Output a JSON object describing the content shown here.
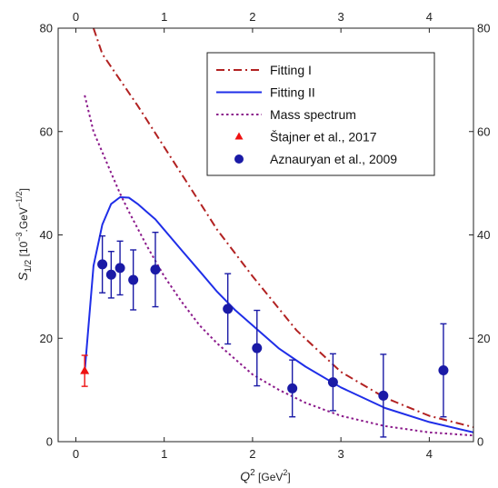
{
  "chart_data": {
    "type": "line",
    "xlabel": {
      "main": "Q",
      "sup": "2",
      "unit": " [GeV",
      "unit_sup": "2",
      "unit_end": "]"
    },
    "ylabel": {
      "main": "S",
      "sub": "1/2",
      "unit": " [10",
      "sup1": "−3",
      "mid": ".GeV",
      "sup2": "−1/2",
      "end": "]"
    },
    "xlim": [
      -0.2,
      4.5
    ],
    "ylim": [
      0,
      80
    ],
    "xticks": [
      0,
      1,
      2,
      3,
      4
    ],
    "yticks": [
      0,
      20,
      40,
      60,
      80
    ],
    "grid": false,
    "legend_position": "top-right",
    "series": [
      {
        "name": "Fitting I",
        "kind": "line",
        "style": "dashdot",
        "color": "#b22222",
        "x": [
          0.2,
          0.3,
          0.5,
          0.7,
          1.0,
          1.3,
          1.6,
          2.0,
          2.5,
          3.0,
          3.5,
          4.0,
          4.5
        ],
        "y": [
          80,
          75,
          70,
          65,
          57,
          49,
          41,
          32,
          21.5,
          13.5,
          8.5,
          5,
          2.8
        ]
      },
      {
        "name": "Fitting II",
        "kind": "line",
        "style": "solid",
        "color": "#1f2ee8",
        "x": [
          0.1,
          0.2,
          0.3,
          0.4,
          0.5,
          0.6,
          0.7,
          0.8,
          0.9,
          1.0,
          1.2,
          1.4,
          1.6,
          1.8,
          2.0,
          2.3,
          2.6,
          3.0,
          3.5,
          4.0,
          4.5
        ],
        "y": [
          13.5,
          34,
          42,
          46,
          47.3,
          47.2,
          46,
          44.5,
          43,
          41,
          37,
          33,
          29,
          25.5,
          22.5,
          18,
          14.5,
          10.5,
          6.5,
          3.8,
          1.8
        ]
      },
      {
        "name": "Mass spectrum",
        "kind": "line",
        "style": "dotted",
        "color": "#8b1a8b",
        "x": [
          0.1,
          0.2,
          0.3,
          0.4,
          0.5,
          0.6,
          0.8,
          1.0,
          1.2,
          1.4,
          1.6,
          1.8,
          2.0,
          2.3,
          2.6,
          3.0,
          3.5,
          4.0,
          4.5
        ],
        "y": [
          67,
          60,
          56,
          52,
          48,
          44.5,
          38,
          32,
          27,
          22.5,
          19,
          16,
          13,
          10,
          7.5,
          5,
          3,
          1.8,
          1.2
        ]
      },
      {
        "name": "Štajner et al., 2017",
        "kind": "points",
        "marker": "triangle",
        "color": "#ee1111",
        "x": [
          0.1
        ],
        "y": [
          13.7
        ],
        "err": [
          3
        ]
      },
      {
        "name": "Aznauryan et al., 2009",
        "kind": "points",
        "marker": "circle",
        "color": "#1a1aa6",
        "x": [
          0.3,
          0.4,
          0.5,
          0.65,
          0.9,
          1.72,
          2.05,
          2.45,
          2.91,
          3.48,
          4.16
        ],
        "y": [
          34.3,
          32.3,
          33.6,
          31.3,
          33.3,
          25.7,
          18.1,
          10.3,
          11.5,
          8.9,
          13.8
        ],
        "err": [
          5.5,
          4.5,
          5.2,
          5.8,
          7.2,
          6.8,
          7.3,
          5.5,
          5.5,
          8.0,
          9.0
        ]
      }
    ]
  }
}
